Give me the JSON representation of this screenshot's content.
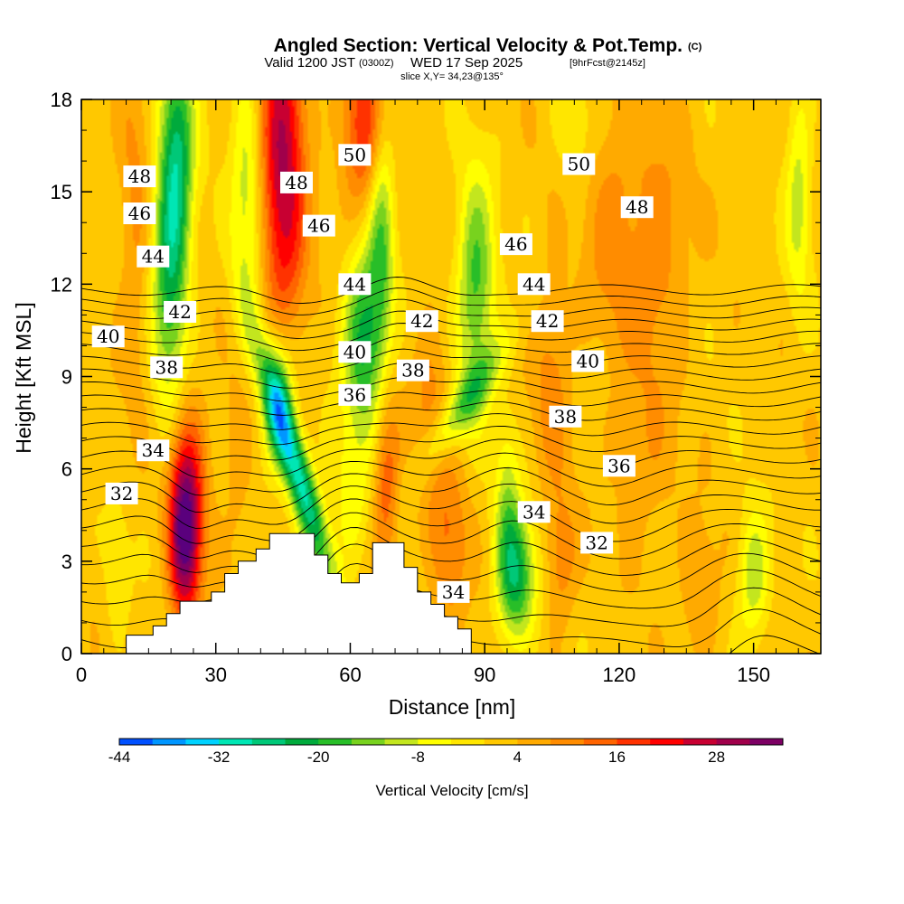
{
  "title": {
    "main": "Angled Section: Vertical Velocity & Pot.Temp.",
    "main_suffix": "(C)",
    "valid_a": "Valid 1200 JST",
    "valid_b": "(0300Z)",
    "valid_c": "WED 17 Sep 2025",
    "valid_d": "[9hrFcst@2145z]",
    "slice": "slice X,Y= 34,23@135°"
  },
  "chart_data": {
    "type": "heatmap",
    "xlabel": "Distance [nm]",
    "ylabel": "Height [Kft MSL]",
    "xlim": [
      0,
      165
    ],
    "ylim": [
      0,
      18
    ],
    "xticks": [
      "0",
      "30",
      "60",
      "90",
      "120",
      "150"
    ],
    "yticks": [
      "0",
      "3",
      "6",
      "9",
      "12",
      "15",
      "18"
    ],
    "terrain": {
      "x": [
        0,
        10,
        10,
        16,
        16,
        19,
        19,
        22,
        22,
        29,
        29,
        32,
        32,
        35,
        35,
        39,
        39,
        42,
        42,
        52,
        52,
        55,
        55,
        58,
        58,
        62,
        62,
        65,
        65,
        72,
        72,
        75,
        75,
        78,
        78,
        81,
        81,
        84,
        84,
        87,
        87,
        165
      ],
      "y": [
        0,
        0,
        0.6,
        0.6,
        0.9,
        0.9,
        1.3,
        1.3,
        1.7,
        1.7,
        2.0,
        2.0,
        2.6,
        2.6,
        3.0,
        3.0,
        3.4,
        3.4,
        3.9,
        3.9,
        3.2,
        3.2,
        2.6,
        2.6,
        2.3,
        2.3,
        2.6,
        2.6,
        3.6,
        3.6,
        2.8,
        2.8,
        2.0,
        2.0,
        1.6,
        1.6,
        1.2,
        1.2,
        0.8,
        0.8,
        0,
        0
      ]
    },
    "vertical_velocity": {
      "units": "cm/s",
      "colorbar_label": "Vertical Velocity [cm/s]",
      "colorbar_ticks": [
        "-44",
        "-32",
        "-20",
        "-8",
        "4",
        "16",
        "28"
      ],
      "colorbar_range": [
        -44,
        36
      ],
      "colorbar_step": 4,
      "colors": [
        "#0000ff",
        "#0050ff",
        "#0096ff",
        "#00d2ff",
        "#00e6b4",
        "#00c878",
        "#00aa3c",
        "#28be28",
        "#78d21e",
        "#c3e61e",
        "#ffff00",
        "#ffe600",
        "#ffc800",
        "#ffaa00",
        "#ff8c00",
        "#ff6400",
        "#ff3200",
        "#ff0000",
        "#c80032",
        "#a0004b",
        "#7d0064",
        "#5a007d"
      ],
      "features": [
        {
          "x": 20,
          "y": 13.5,
          "sx": 2.8,
          "sy": 3.5,
          "tilt": 0.1,
          "amp": -26
        },
        {
          "x": 22,
          "y": 16.5,
          "sx": 2.5,
          "sy": 2.5,
          "tilt": 0,
          "amp": -12
        },
        {
          "x": 12,
          "y": 14,
          "sx": 2.5,
          "sy": 4,
          "tilt": 0,
          "amp": 7
        },
        {
          "x": 45,
          "y": 16,
          "sx": 3.5,
          "sy": 4.5,
          "tilt": 0,
          "amp": 26
        },
        {
          "x": 63,
          "y": 17,
          "sx": 3.5,
          "sy": 2,
          "tilt": 0,
          "amp": 18
        },
        {
          "x": 37,
          "y": 15,
          "sx": 2.5,
          "sy": 3.5,
          "tilt": 0,
          "amp": -12
        },
        {
          "x": 23,
          "y": 3.6,
          "sx": 2.4,
          "sy": 1.9,
          "tilt": 0,
          "amp": 30
        },
        {
          "x": 24,
          "y": 5.5,
          "sx": 3,
          "sy": 2,
          "tilt": 0,
          "amp": 14
        },
        {
          "x": 48,
          "y": 6.0,
          "sx": 2.4,
          "sy": 2.8,
          "tilt": -2,
          "amp": -34
        },
        {
          "x": 44,
          "y": 8.3,
          "sx": 2.5,
          "sy": 1.6,
          "tilt": 0,
          "amp": -22
        },
        {
          "x": 63,
          "y": 10.2,
          "sx": 3.2,
          "sy": 2.2,
          "tilt": 0,
          "amp": -24
        },
        {
          "x": 67,
          "y": 14,
          "sx": 2,
          "sy": 3,
          "tilt": 0,
          "amp": -16
        },
        {
          "x": 68,
          "y": 5.5,
          "sx": 2,
          "sy": 2,
          "tilt": 0,
          "amp": 14
        },
        {
          "x": 60,
          "y": 5,
          "sx": 2.5,
          "sy": 1.5,
          "tilt": 0,
          "amp": -8
        },
        {
          "x": 78,
          "y": 8,
          "sx": 3,
          "sy": 2,
          "tilt": 0,
          "amp": 8
        },
        {
          "x": 85,
          "y": 8.0,
          "sx": 3.2,
          "sy": 1.5,
          "tilt": 4,
          "amp": -16
        },
        {
          "x": 88,
          "y": 12.0,
          "sx": 3,
          "sy": 2.5,
          "tilt": 0,
          "amp": -20
        },
        {
          "x": 82,
          "y": 3.5,
          "sx": 3,
          "sy": 2,
          "tilt": 0,
          "amp": 10
        },
        {
          "x": 97,
          "y": 2.5,
          "sx": 3,
          "sy": 1.5,
          "tilt": 0,
          "amp": -24
        },
        {
          "x": 95,
          "y": 5,
          "sx": 2,
          "sy": 2,
          "tilt": 0,
          "amp": -10
        },
        {
          "x": 105,
          "y": 9,
          "sx": 3,
          "sy": 2.5,
          "tilt": 0,
          "amp": 8
        },
        {
          "x": 107,
          "y": 3,
          "sx": 2.5,
          "sy": 1.5,
          "tilt": 0,
          "amp": 9
        },
        {
          "x": 118,
          "y": 14,
          "sx": 4,
          "sy": 3,
          "tilt": 0,
          "amp": 7
        },
        {
          "x": 128,
          "y": 13,
          "sx": 5,
          "sy": 3,
          "tilt": 0,
          "amp": 9
        },
        {
          "x": 150,
          "y": 2.5,
          "sx": 2.5,
          "sy": 1.5,
          "tilt": 0,
          "amp": -14
        },
        {
          "x": 138,
          "y": 2,
          "sx": 3,
          "sy": 1.5,
          "tilt": 0,
          "amp": 7
        },
        {
          "x": 160,
          "y": 15,
          "sx": 2,
          "sy": 2.5,
          "tilt": 0,
          "amp": -12
        },
        {
          "x": 125,
          "y": 6,
          "sx": 5,
          "sy": 2,
          "tilt": 0,
          "amp": 5
        },
        {
          "x": 8,
          "y": 2.5,
          "sx": 2,
          "sy": 1.5,
          "tilt": 0,
          "amp": -6
        },
        {
          "x": 110,
          "y": 17,
          "sx": 3,
          "sy": 1.2,
          "tilt": 0,
          "amp": -6
        },
        {
          "x": 35,
          "y": 6.5,
          "sx": 2,
          "sy": 2,
          "tilt": 0,
          "amp": 6
        }
      ]
    },
    "potential_temperature": {
      "units": "C",
      "contour_interval": 1,
      "min": 27,
      "max": 51,
      "labeled_contours": [
        {
          "label": "48",
          "x": 13,
          "y": 15.5
        },
        {
          "label": "46",
          "x": 13,
          "y": 14.3
        },
        {
          "label": "44",
          "x": 16,
          "y": 12.9
        },
        {
          "label": "42",
          "x": 22,
          "y": 11.1
        },
        {
          "label": "40",
          "x": 6,
          "y": 10.3
        },
        {
          "label": "38",
          "x": 19,
          "y": 9.3
        },
        {
          "label": "34",
          "x": 16,
          "y": 6.6
        },
        {
          "label": "32",
          "x": 9,
          "y": 5.2
        },
        {
          "label": "48",
          "x": 48,
          "y": 15.3
        },
        {
          "label": "46",
          "x": 53,
          "y": 13.9
        },
        {
          "label": "50",
          "x": 61,
          "y": 16.2
        },
        {
          "label": "44",
          "x": 61,
          "y": 12.0
        },
        {
          "label": "40",
          "x": 61,
          "y": 9.8
        },
        {
          "label": "36",
          "x": 61,
          "y": 8.4
        },
        {
          "label": "42",
          "x": 76,
          "y": 10.8
        },
        {
          "label": "38",
          "x": 74,
          "y": 9.2
        },
        {
          "label": "46",
          "x": 97,
          "y": 13.3
        },
        {
          "label": "44",
          "x": 101,
          "y": 12.0
        },
        {
          "label": "42",
          "x": 104,
          "y": 10.8
        },
        {
          "label": "40",
          "x": 113,
          "y": 9.5
        },
        {
          "label": "38",
          "x": 108,
          "y": 7.7
        },
        {
          "label": "50",
          "x": 111,
          "y": 15.9
        },
        {
          "label": "48",
          "x": 124,
          "y": 14.5
        },
        {
          "label": "36",
          "x": 120,
          "y": 6.1
        },
        {
          "label": "34",
          "x": 101,
          "y": 4.6
        },
        {
          "label": "32",
          "x": 115,
          "y": 3.6
        },
        {
          "label": "34",
          "x": 83,
          "y": 2.0
        }
      ]
    }
  }
}
